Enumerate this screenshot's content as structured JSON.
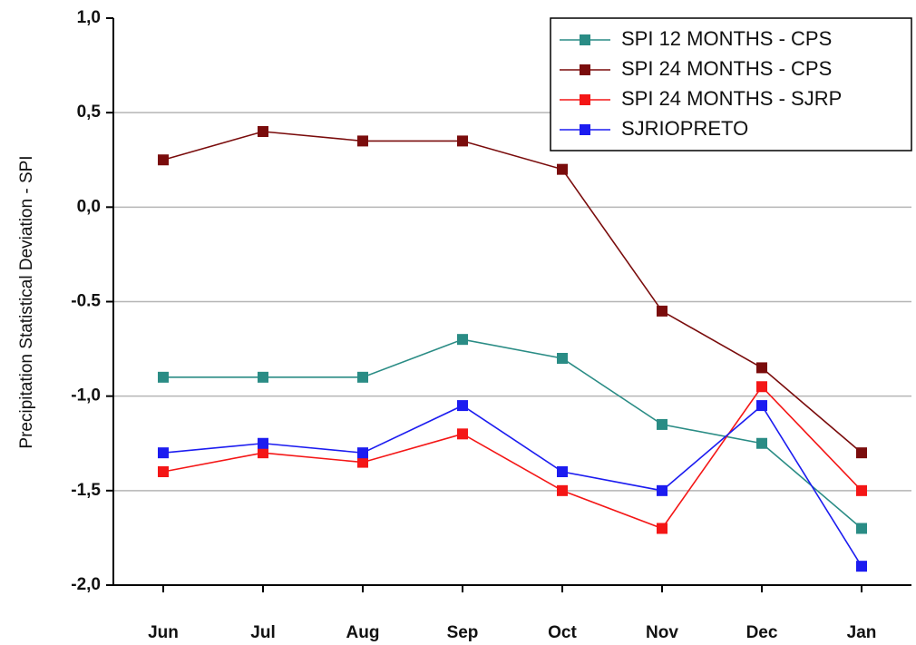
{
  "chart_data": {
    "type": "line",
    "y_label": "Precipitation Statistical Deviation - SPI",
    "categories": [
      "Jun",
      "Jul",
      "Aug",
      "Sep",
      "Oct",
      "Nov",
      "Dec",
      "Jan"
    ],
    "series": [
      {
        "name": "SPI 12 MONTHS - CPS",
        "color": "#2a8c85",
        "values": [
          -0.9,
          -0.9,
          -0.9,
          -0.7,
          -0.8,
          -1.15,
          -1.25,
          -1.7
        ]
      },
      {
        "name": "SPI 24 MONTHS - CPS",
        "color": "#7a0c0c",
        "values": [
          0.25,
          0.4,
          0.35,
          0.35,
          0.2,
          -0.55,
          -0.85,
          -1.3
        ]
      },
      {
        "name": "SPI 24 MONTHS - SJRP",
        "color": "#f41616",
        "values": [
          -1.4,
          -1.3,
          -1.35,
          -1.2,
          -1.5,
          -1.7,
          -0.95,
          -1.5
        ]
      },
      {
        "name": "SJRIOPRETO",
        "color": "#1c1cf0",
        "values": [
          -1.3,
          -1.25,
          -1.3,
          -1.05,
          -1.4,
          -1.5,
          -1.05,
          -1.9
        ]
      }
    ],
    "ylim": [
      -2.0,
      1.0
    ],
    "yticks": [
      {
        "value": 1.0,
        "label": "1,0"
      },
      {
        "value": 0.5,
        "label": "0,5"
      },
      {
        "value": 0.0,
        "label": "0,0"
      },
      {
        "value": -0.5,
        "label": "-0.5"
      },
      {
        "value": -1.0,
        "label": "-1,0"
      },
      {
        "value": -1.5,
        "label": "-1,5"
      },
      {
        "value": -2.0,
        "label": "-2,0"
      }
    ],
    "grid": true,
    "legend": "upper right"
  }
}
